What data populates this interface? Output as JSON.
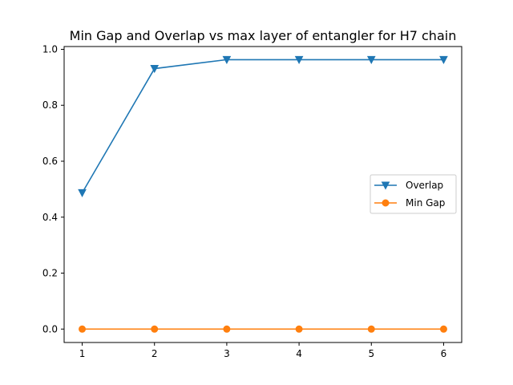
{
  "chart_data": {
    "type": "line",
    "title": "Min Gap and Overlap vs max layer of entangler for H7 chain",
    "xlabel": "",
    "ylabel": "",
    "x": [
      1,
      2,
      3,
      4,
      5,
      6
    ],
    "xticks": [
      "1",
      "2",
      "3",
      "4",
      "5",
      "6"
    ],
    "yticks": [
      "0.0",
      "0.2",
      "0.4",
      "0.6",
      "0.8",
      "1.0"
    ],
    "xlim": [
      0.75,
      6.25
    ],
    "ylim": [
      -0.048,
      1.01
    ],
    "grid": false,
    "legend_position": "center-right",
    "series": [
      {
        "name": "Overlap",
        "values": [
          0.487,
          0.931,
          0.963,
          0.963,
          0.963,
          0.963
        ],
        "color": "#1f77b4",
        "marker": "triangle-down"
      },
      {
        "name": "Min Gap",
        "values": [
          0.0,
          0.0,
          0.0,
          0.0,
          0.0,
          0.0
        ],
        "color": "#ff7f0e",
        "marker": "circle"
      }
    ]
  }
}
